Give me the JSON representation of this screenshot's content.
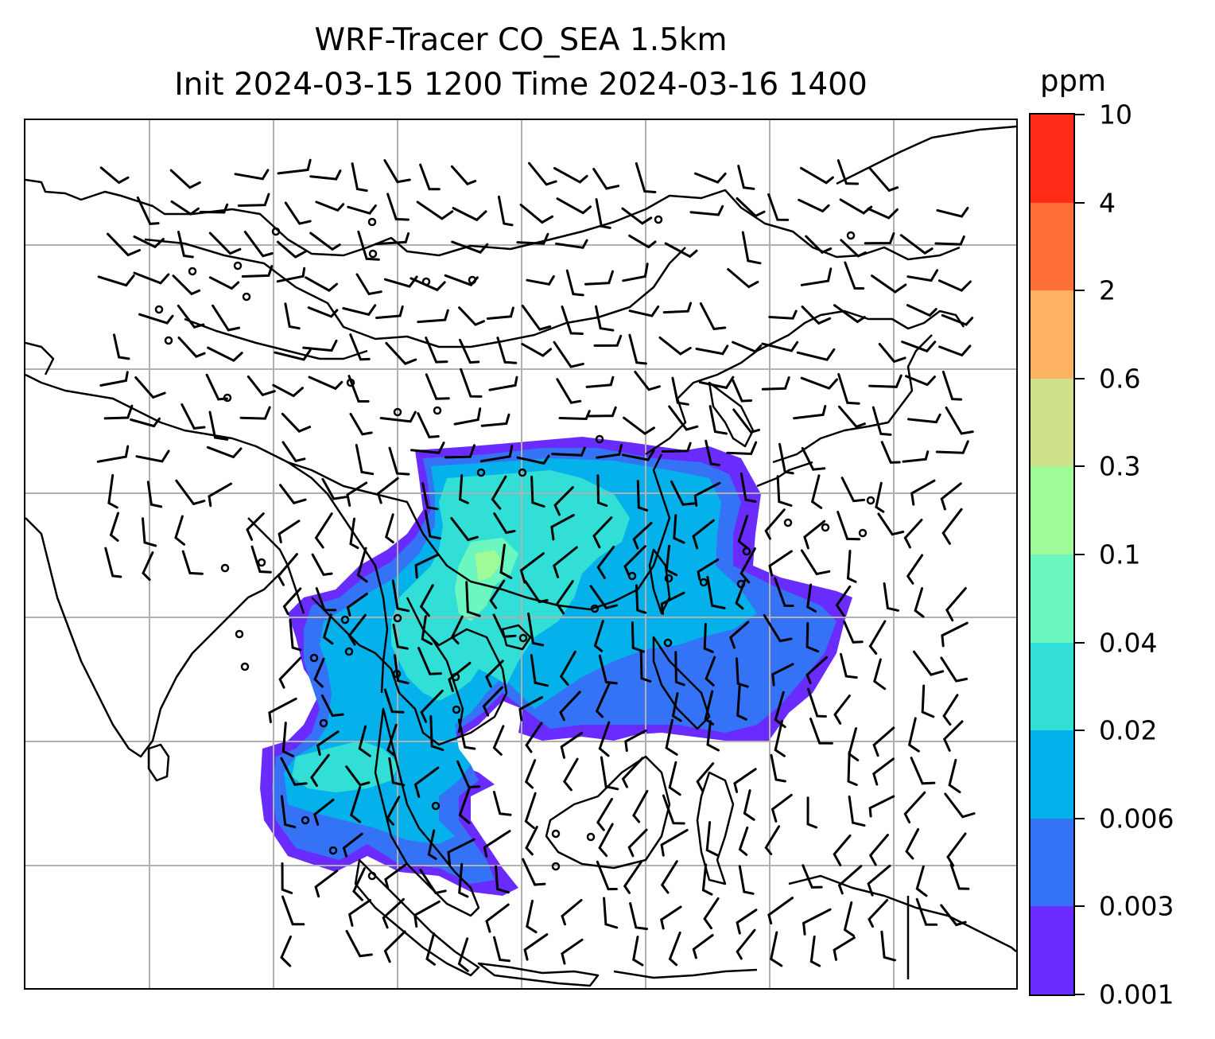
{
  "title": {
    "line1": "WRF-Tracer CO_SEA 1.5km",
    "line2": "Init 2024-03-15 1200 Time 2024-03-16 1400"
  },
  "colorbar": {
    "units": "ppm",
    "levels": [
      "0.001",
      "0.003",
      "0.006",
      "0.02",
      "0.04",
      "0.1",
      "0.3",
      "0.6",
      "2",
      "4",
      "10"
    ],
    "colors": [
      "#6a2bff",
      "#3473f5",
      "#05b1ea",
      "#32dfd6",
      "#6bf7bf",
      "#9ffb97",
      "#cfe08a",
      "#fdb163",
      "#ff7039",
      "#ff2c18"
    ]
  },
  "map": {
    "gridlines": true,
    "gridline_color": "#b0b0b0",
    "coastline_color": "#000000",
    "overlay": "wind barbs",
    "field": "CO tracer concentration"
  }
}
